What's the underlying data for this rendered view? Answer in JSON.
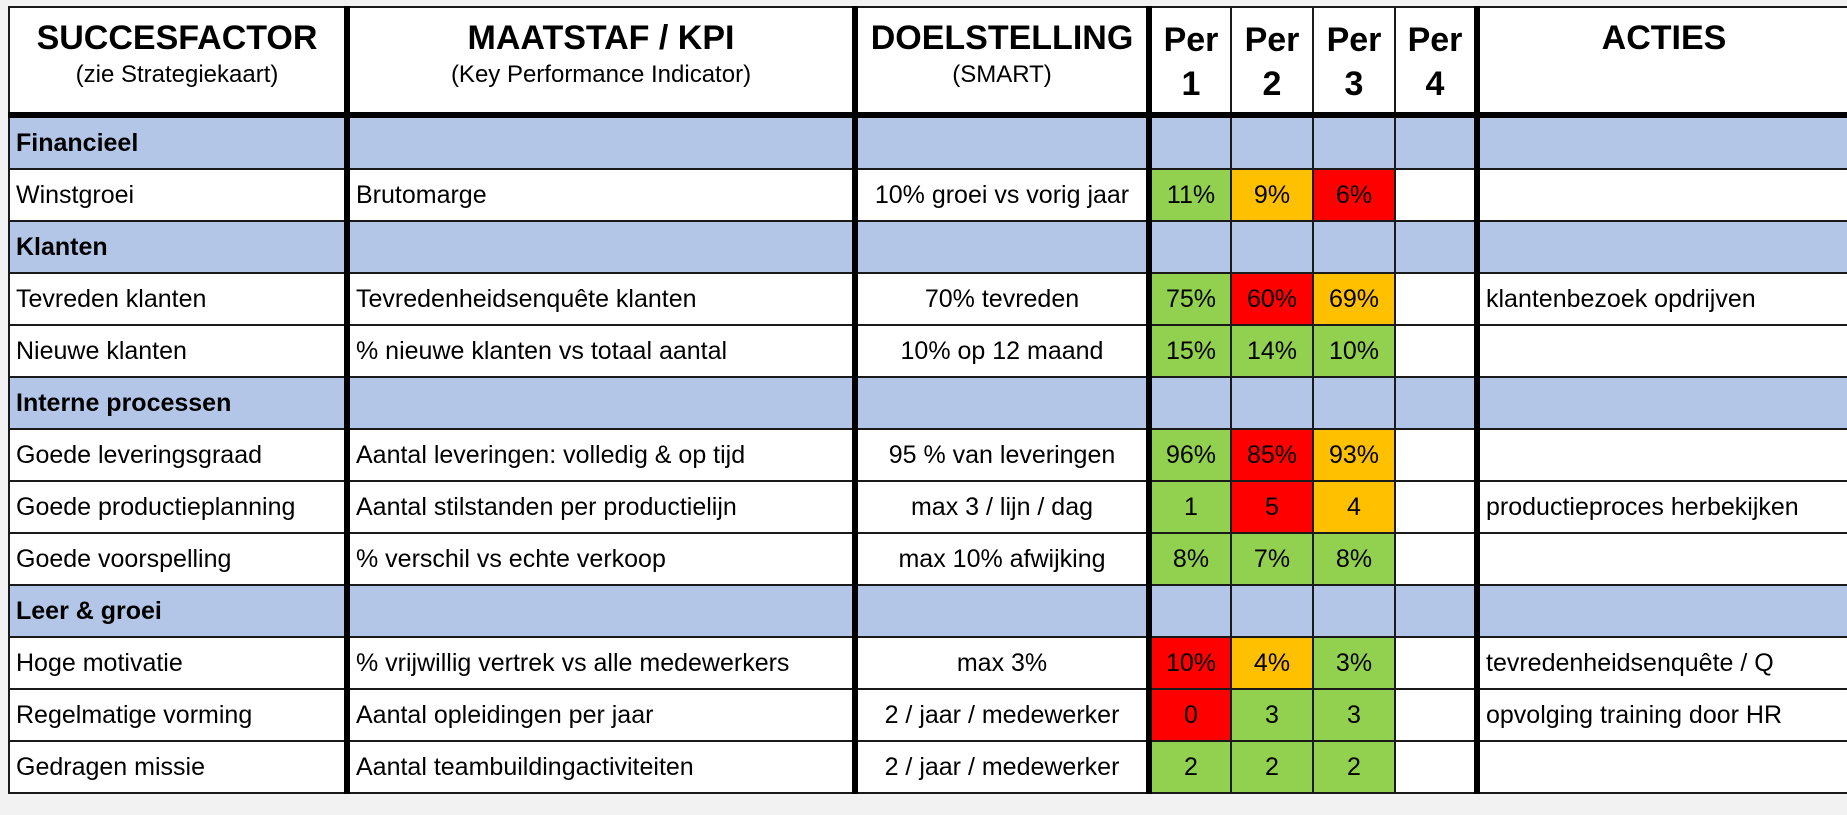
{
  "header": {
    "col1_title": "SUCCESFACTOR",
    "col1_sub": "(zie Strategiekaart)",
    "col2_title": "MAATSTAF / KPI",
    "col2_sub": "(Key Performance Indicator)",
    "col3_title": "DOELSTELLING",
    "col3_sub": "(SMART)",
    "per": [
      {
        "a": "Per",
        "b": "1"
      },
      {
        "a": "Per",
        "b": "2"
      },
      {
        "a": "Per",
        "b": "3"
      },
      {
        "a": "Per",
        "b": "4"
      }
    ],
    "col8_title": "ACTIES"
  },
  "status_colors": {
    "green": "#92d050",
    "orange": "#ffc000",
    "red": "#ff0000",
    "section": "#b4c6e7"
  },
  "rows": [
    {
      "type": "section",
      "factor": "Financieel"
    },
    {
      "type": "data",
      "factor": "Winstgroei",
      "kpi": "Brutomarge",
      "goal": "10% groei vs vorig jaar",
      "p1": "11%",
      "p1s": "green",
      "p2": "9%",
      "p2s": "orange",
      "p3": "6%",
      "p3s": "red",
      "p4": "",
      "action": ""
    },
    {
      "type": "section",
      "factor": "Klanten"
    },
    {
      "type": "data",
      "factor": "Tevreden klanten",
      "kpi": "Tevredenheidsenquête klanten",
      "goal": "70% tevreden",
      "p1": "75%",
      "p1s": "green",
      "p2": "60%",
      "p2s": "red",
      "p3": "69%",
      "p3s": "orange",
      "p4": "",
      "action": "klantenbezoek opdrijven"
    },
    {
      "type": "data",
      "factor": "Nieuwe klanten",
      "kpi": "% nieuwe klanten vs totaal aantal",
      "goal": "10% op 12 maand",
      "p1": "15%",
      "p1s": "green",
      "p2": "14%",
      "p2s": "green",
      "p3": "10%",
      "p3s": "green",
      "p4": "",
      "action": ""
    },
    {
      "type": "section",
      "factor": "Interne processen"
    },
    {
      "type": "data",
      "factor": "Goede leveringsgraad",
      "kpi": "Aantal leveringen: volledig & op tijd",
      "goal": "95 % van leveringen",
      "p1": "96%",
      "p1s": "green",
      "p2": "85%",
      "p2s": "red",
      "p3": "93%",
      "p3s": "orange",
      "p4": "",
      "action": ""
    },
    {
      "type": "data",
      "factor": "Goede productieplanning",
      "kpi": "Aantal stilstanden per productielijn",
      "goal": "max 3 / lijn / dag",
      "p1": "1",
      "p1s": "green",
      "p2": "5",
      "p2s": "red",
      "p3": "4",
      "p3s": "orange",
      "p4": "",
      "action": "productieproces herbekijken"
    },
    {
      "type": "data",
      "factor": "Goede voorspelling",
      "kpi": "% verschil vs echte verkoop",
      "goal": "max 10% afwijking",
      "p1": "8%",
      "p1s": "green",
      "p2": "7%",
      "p2s": "green",
      "p3": "8%",
      "p3s": "green",
      "p4": "",
      "action": ""
    },
    {
      "type": "section",
      "factor": "Leer & groei"
    },
    {
      "type": "data",
      "factor": "Hoge motivatie",
      "kpi": "% vrijwillig vertrek vs alle medewerkers",
      "goal": "max 3%",
      "p1": "10%",
      "p1s": "red",
      "p2": "4%",
      "p2s": "orange",
      "p3": "3%",
      "p3s": "green",
      "p4": "",
      "action": "tevredenheidsenquête / Q"
    },
    {
      "type": "data",
      "factor": "Regelmatige vorming",
      "kpi": "Aantal opleidingen per jaar",
      "goal": "2 / jaar / medewerker",
      "p1": "0",
      "p1s": "red",
      "p2": "3",
      "p2s": "green",
      "p3": "3",
      "p3s": "green",
      "p4": "",
      "action": "opvolging training door HR"
    },
    {
      "type": "data",
      "factor": "Gedragen missie",
      "kpi": "Aantal teambuildingactiviteiten",
      "goal": "2 / jaar / medewerker",
      "p1": "2",
      "p1s": "green",
      "p2": "2",
      "p2s": "green",
      "p3": "2",
      "p3s": "green",
      "p4": "",
      "action": ""
    }
  ]
}
